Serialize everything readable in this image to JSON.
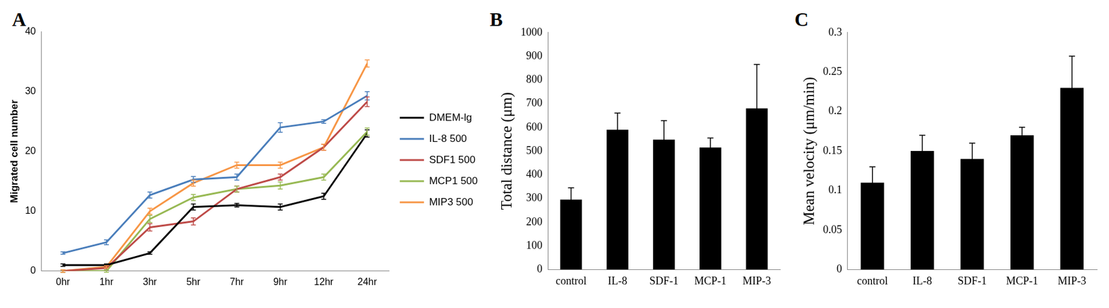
{
  "chart_data": [
    {
      "type": "line",
      "title": "A",
      "y_label": "Migrated cell number",
      "categories": [
        "0hr",
        "1hr",
        "3hr",
        "5hr",
        "7hr",
        "9hr",
        "12hr",
        "24hr"
      ],
      "series": [
        {
          "name": "DMEM-lg",
          "color": "#000000",
          "values": [
            1,
            1,
            3,
            10.7,
            11,
            10.7,
            12.5,
            23
          ],
          "errors": [
            0.2,
            0.2,
            0.2,
            0.5,
            0.3,
            0.5,
            0.5,
            0.6
          ]
        },
        {
          "name": "IL-8 500",
          "color": "#4a7ebb",
          "values": [
            3,
            4.8,
            12.7,
            15.3,
            15.7,
            24,
            25,
            29.3
          ],
          "errors": [
            0.2,
            0.4,
            0.5,
            0.5,
            0.5,
            0.8,
            0.3,
            0.7
          ]
        },
        {
          "name": "SDF1 500",
          "color": "#be4b48",
          "values": [
            0,
            0.5,
            7.3,
            8.3,
            13.7,
            15.7,
            20.7,
            28.3
          ],
          "errors": [
            0.2,
            0.3,
            0.6,
            0.6,
            0.5,
            0.5,
            0.5,
            0.8
          ]
        },
        {
          "name": "MCP1 500",
          "color": "#98b954",
          "values": [
            0,
            0,
            8.7,
            12.3,
            13.7,
            14.3,
            15.7,
            23.3
          ],
          "errors": [
            0.2,
            0.2,
            0.6,
            0.5,
            0.5,
            0.6,
            0.5,
            0.6
          ]
        },
        {
          "name": "MIP3 500",
          "color": "#f79646",
          "values": [
            0,
            0.7,
            10,
            14.7,
            17.7,
            17.7,
            20.7,
            34.7
          ],
          "errors": [
            0.2,
            0.2,
            0.5,
            0.5,
            0.5,
            0.5,
            0.5,
            0.6
          ]
        }
      ],
      "ylim": [
        0,
        40
      ],
      "yticks": [
        0,
        10,
        20,
        30,
        40
      ],
      "grid": false,
      "legend": "right"
    },
    {
      "type": "bar",
      "title": "B",
      "y_label": "Total distance (μm)",
      "categories": [
        "control",
        "IL-8",
        "SDF-1",
        "MCP-1",
        "MIP-3"
      ],
      "values": [
        295,
        590,
        548,
        515,
        680
      ],
      "errors": [
        50,
        70,
        80,
        40,
        185
      ],
      "color": "#000000",
      "ylim": [
        0,
        1000
      ],
      "yticks": [
        0,
        100,
        200,
        300,
        400,
        500,
        600,
        700,
        800,
        900,
        1000
      ],
      "grid": false
    },
    {
      "type": "bar",
      "title": "C",
      "y_label": "Mean velocity (μm/min)",
      "categories": [
        "control",
        "IL-8",
        "SDF-1",
        "MCP-1",
        "MIP-3"
      ],
      "values": [
        0.11,
        0.15,
        0.14,
        0.17,
        0.23
      ],
      "errors": [
        0.02,
        0.02,
        0.02,
        0.01,
        0.04
      ],
      "color": "#000000",
      "ylim": [
        0,
        0.3
      ],
      "yticks": [
        0,
        0.05,
        0.1,
        0.15,
        0.2,
        0.25,
        0.3
      ],
      "grid": false
    }
  ]
}
